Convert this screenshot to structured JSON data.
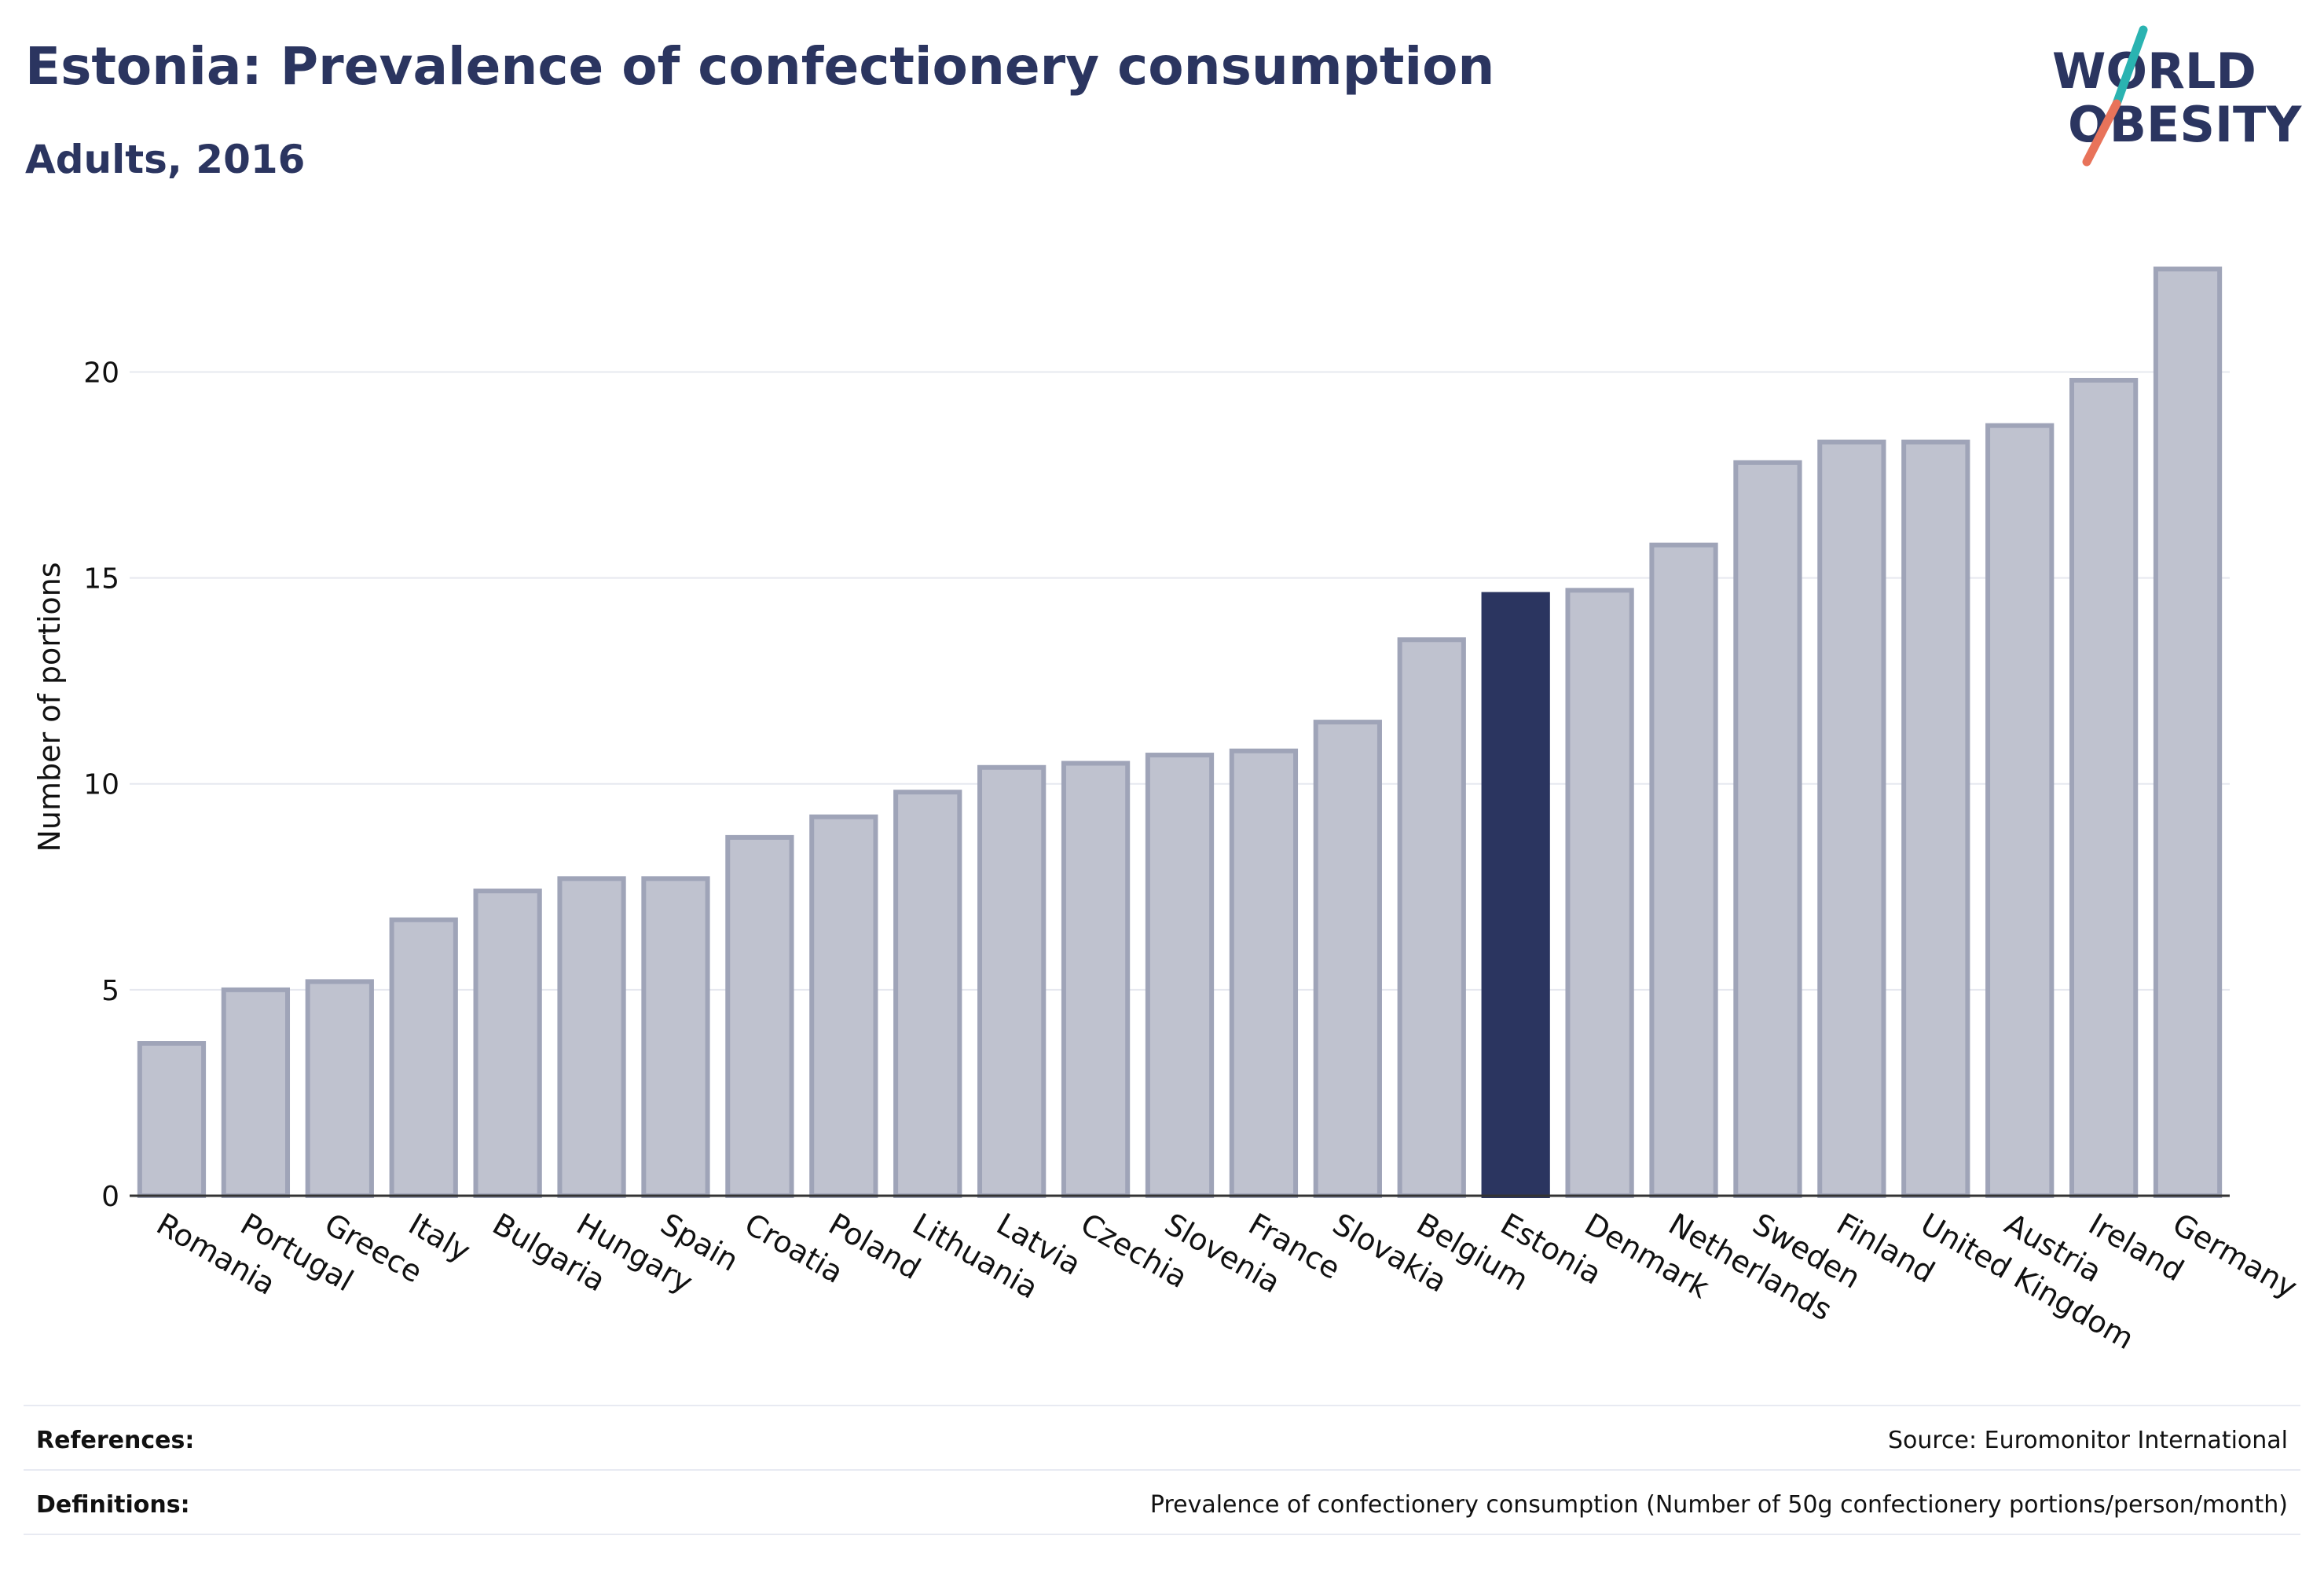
{
  "header": {
    "title": "Estonia: Prevalence of confectionery consumption",
    "subtitle": "Adults, 2016"
  },
  "logo": {
    "line1": "WORLD",
    "line2": "OBESITY",
    "icon": "world-obesity-logo"
  },
  "chart_data": {
    "type": "bar",
    "title": "Estonia: Prevalence of confectionery consumption",
    "subtitle": "Adults, 2016",
    "xlabel": "",
    "ylabel": "Number of portions",
    "ylim": [
      0,
      23.5
    ],
    "yticks": [
      0,
      5,
      10,
      15,
      20
    ],
    "grid": true,
    "highlight": "Estonia",
    "categories": [
      "Romania",
      "Portugal",
      "Greece",
      "Italy",
      "Bulgaria",
      "Hungary",
      "Spain",
      "Croatia",
      "Poland",
      "Lithuania",
      "Latvia",
      "Czechia",
      "Slovenia",
      "France",
      "Slovakia",
      "Belgium",
      "Estonia",
      "Denmark",
      "Netherlands",
      "Sweden",
      "Finland",
      "United Kingdom",
      "Austria",
      "Ireland",
      "Germany"
    ],
    "values": [
      3.7,
      5.0,
      5.2,
      6.7,
      7.4,
      7.7,
      7.7,
      8.7,
      9.2,
      9.8,
      10.4,
      10.5,
      10.7,
      10.8,
      11.5,
      13.5,
      14.6,
      14.7,
      15.8,
      17.8,
      18.3,
      18.3,
      18.7,
      19.8,
      22.5
    ]
  },
  "colors": {
    "bar": "#bfc2cf",
    "bar_border": "#9fa4b8",
    "highlight": "#2b3560",
    "grid": "#e6e8ef",
    "axis": "#333333",
    "title": "#2b3560",
    "logo_teal": "#2ab3b1",
    "logo_coral": "#e8735a"
  },
  "footer": {
    "references_label": "References:",
    "references_value": "Source: Euromonitor International",
    "definitions_label": "Definitions:",
    "definitions_value": "Prevalence of confectionery consumption (Number of 50g confectionery portions/person/month)"
  }
}
